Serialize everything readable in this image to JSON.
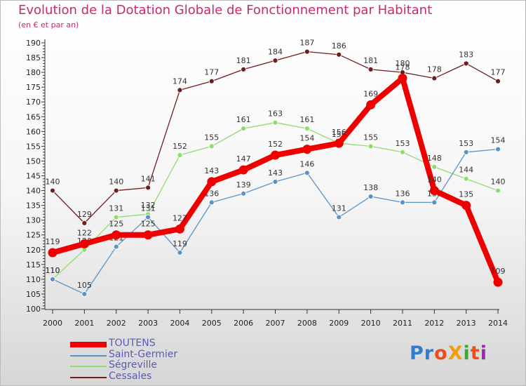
{
  "header": {
    "title": "Evolution de la Dotation Globale de Fonctionnement par Habitant",
    "subtitle": "(en € et par an)"
  },
  "logo": {
    "text": "ProXiti",
    "letters": [
      "P",
      "r",
      "o",
      "X",
      "i",
      "t",
      "i"
    ],
    "colors": [
      "#2f7fd0",
      "#2f7fd0",
      "#e94e1b",
      "#f39c12",
      "#3aa83a",
      "#e94e1b",
      "#9c27b0"
    ]
  },
  "chart_data": {
    "type": "line",
    "title": "Evolution de la Dotation Globale de Fonctionnement par Habitant",
    "subtitle": "(en € et par an)",
    "xlabel": "",
    "ylabel": "",
    "ylim": [
      100,
      190
    ],
    "ytick_step": 5,
    "grid": false,
    "legend_position": "bottom-left",
    "x": [
      "2000",
      "2001",
      "2002",
      "2003",
      "2004",
      "2005",
      "2006",
      "2007",
      "2008",
      "2009",
      "2010",
      "2011",
      "2012",
      "2013",
      "2014"
    ],
    "series": [
      {
        "name": "Cessales",
        "color": "#6e1c1c",
        "values": [
          140,
          129,
          140,
          141,
          174,
          177,
          181,
          184,
          187,
          186,
          181,
          180,
          178,
          183,
          177
        ]
      },
      {
        "name": "Ségreville",
        "color": "#8fdc6e",
        "values": [
          110,
          120,
          131,
          132,
          152,
          155,
          161,
          163,
          161,
          156,
          155,
          153,
          148,
          144,
          140
        ]
      },
      {
        "name": "Saint-Germier",
        "color": "#5b93c7",
        "values": [
          110,
          105,
          121,
          131,
          119,
          136,
          139,
          143,
          146,
          131,
          138,
          136,
          136,
          153,
          154
        ]
      },
      {
        "name": "TOUTENS",
        "color": "#ee0000",
        "values": [
          119,
          122,
          125,
          125,
          127,
          143,
          147,
          152,
          154,
          156,
          169,
          178,
          140,
          135,
          109
        ]
      }
    ],
    "legend": [
      "TOUTENS",
      "Saint-Germier",
      "Ségreville",
      "Cessales"
    ]
  }
}
